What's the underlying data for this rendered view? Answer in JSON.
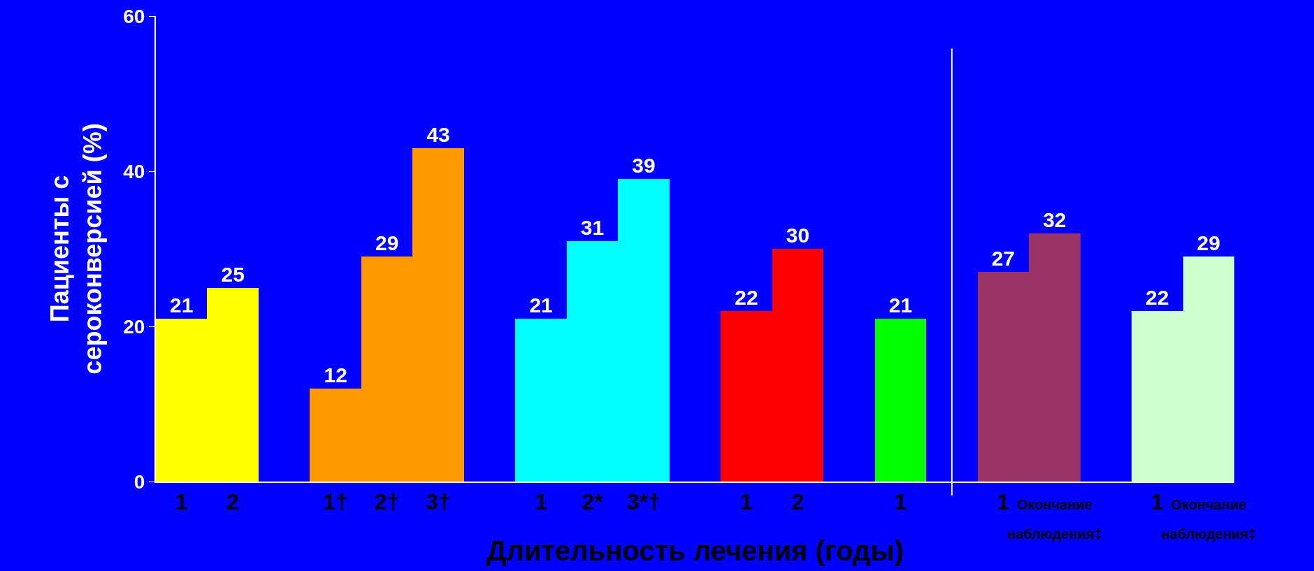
{
  "chart_data": {
    "type": "bar",
    "xlabel": "Длительность лечения (годы)",
    "ylabel": "Пациенты с сероконверсией (%)",
    "categories": [
      "1",
      "2",
      null,
      "1†",
      "2†",
      "3†",
      null,
      "1",
      "2*",
      "3*†",
      null,
      "1",
      "2",
      null,
      "1",
      null,
      "1",
      "Окончание наблюдения‡",
      null,
      "1",
      "Окончание наблюдения‡"
    ],
    "values": [
      21,
      25,
      null,
      12,
      29,
      43,
      null,
      21,
      31,
      39,
      null,
      22,
      30,
      null,
      21,
      null,
      27,
      32,
      null,
      22,
      29
    ],
    "colors": [
      "#ffff00",
      "#ffff00",
      null,
      "#ff9900",
      "#ff9900",
      "#ff9900",
      null,
      "#00ffff",
      "#00ffff",
      "#00ffff",
      null,
      "#ff0000",
      "#ff0000",
      null,
      "#00ff00",
      null,
      "#993366",
      "#993366",
      null,
      "#ccffcc",
      "#ccffcc"
    ],
    "ylim": [
      0,
      60
    ],
    "yticks": [
      0,
      20,
      40,
      60
    ],
    "data_labels": true
  }
}
